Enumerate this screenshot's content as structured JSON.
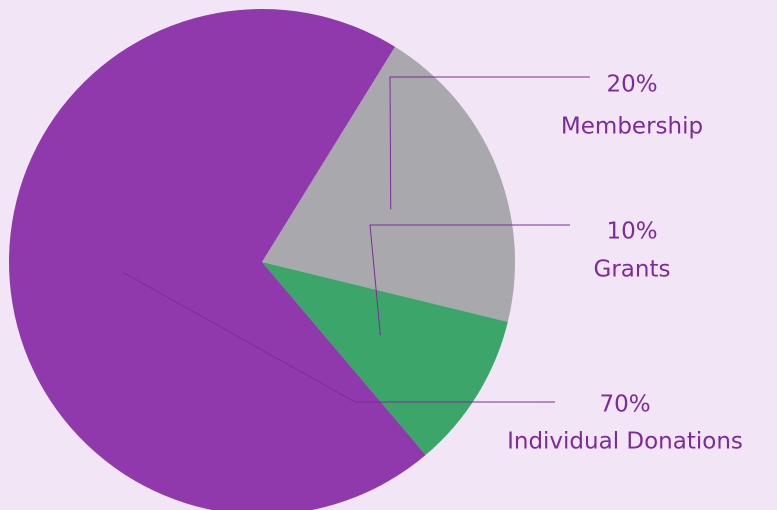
{
  "chart_data": {
    "type": "pie",
    "categories": [
      "Membership",
      "Grants",
      "Individual Donations"
    ],
    "values": [
      20,
      10,
      70
    ],
    "value_labels": [
      "20%",
      "10%",
      "70%"
    ],
    "colors": [
      "#a9a8ac",
      "#3ba56a",
      "#8f39ad"
    ]
  }
}
